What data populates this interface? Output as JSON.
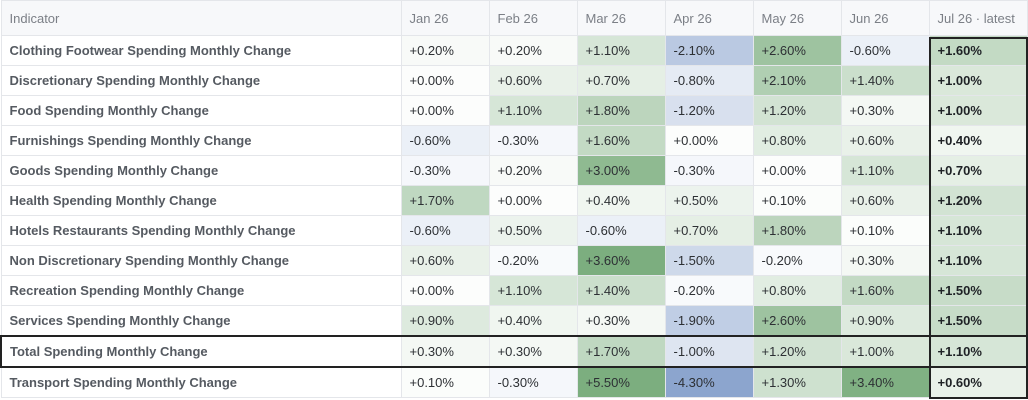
{
  "table": {
    "headers": [
      "Indicator",
      "Jan 26",
      "Feb 26",
      "Mar 26",
      "Apr 26",
      "May 26",
      "Jun 26",
      "Jul 26 · latest"
    ],
    "rows": [
      {
        "name": "Clothing Footwear Spending Monthly Change",
        "values": [
          "+0.20%",
          "+0.20%",
          "+1.10%",
          "-2.10%",
          "+2.60%",
          "-0.60%",
          "+1.60%"
        ]
      },
      {
        "name": "Discretionary Spending Monthly Change",
        "values": [
          "+0.00%",
          "+0.60%",
          "+0.70%",
          "-0.80%",
          "+2.10%",
          "+1.40%",
          "+1.00%"
        ]
      },
      {
        "name": "Food Spending Monthly Change",
        "values": [
          "+0.00%",
          "+1.10%",
          "+1.80%",
          "-1.20%",
          "+1.20%",
          "+0.30%",
          "+1.00%"
        ]
      },
      {
        "name": "Furnishings Spending Monthly Change",
        "values": [
          "-0.60%",
          "-0.30%",
          "+1.60%",
          "+0.00%",
          "+0.80%",
          "+0.60%",
          "+0.40%"
        ]
      },
      {
        "name": "Goods Spending Monthly Change",
        "values": [
          "-0.30%",
          "+0.20%",
          "+3.00%",
          "-0.30%",
          "+0.00%",
          "+1.10%",
          "+0.70%"
        ]
      },
      {
        "name": "Health Spending Monthly Change",
        "values": [
          "+1.70%",
          "+0.00%",
          "+0.40%",
          "+0.50%",
          "+0.10%",
          "+0.60%",
          "+1.20%"
        ]
      },
      {
        "name": "Hotels Restaurants Spending Monthly Change",
        "values": [
          "-0.60%",
          "+0.50%",
          "-0.60%",
          "+0.70%",
          "+1.80%",
          "+0.10%",
          "+1.10%"
        ]
      },
      {
        "name": "Non Discretionary Spending Monthly Change",
        "values": [
          "+0.60%",
          "-0.20%",
          "+3.60%",
          "-1.50%",
          "-0.20%",
          "+0.30%",
          "+1.10%"
        ]
      },
      {
        "name": "Recreation Spending Monthly Change",
        "values": [
          "+0.00%",
          "+1.10%",
          "+1.40%",
          "-0.20%",
          "+0.80%",
          "+1.60%",
          "+1.50%"
        ]
      },
      {
        "name": "Services Spending Monthly Change",
        "values": [
          "+0.90%",
          "+0.40%",
          "+0.30%",
          "-1.90%",
          "+2.60%",
          "+0.90%",
          "+1.50%"
        ]
      },
      {
        "name": "Total Spending Monthly Change",
        "highlighted": true,
        "values": [
          "+0.30%",
          "+0.30%",
          "+1.70%",
          "-1.00%",
          "+1.20%",
          "+1.00%",
          "+1.10%"
        ]
      },
      {
        "name": "Transport Spending Monthly Change",
        "values": [
          "+0.10%",
          "-0.30%",
          "+5.50%",
          "-4.30%",
          "+1.30%",
          "+3.40%",
          "+0.60%"
        ]
      }
    ]
  },
  "colors": {
    "positive": "#5b9a5f",
    "negative": "#6f8fc2",
    "border": "#e4e6ea",
    "header_bg": "#f7f8fa",
    "highlight_border": "#222222"
  }
}
